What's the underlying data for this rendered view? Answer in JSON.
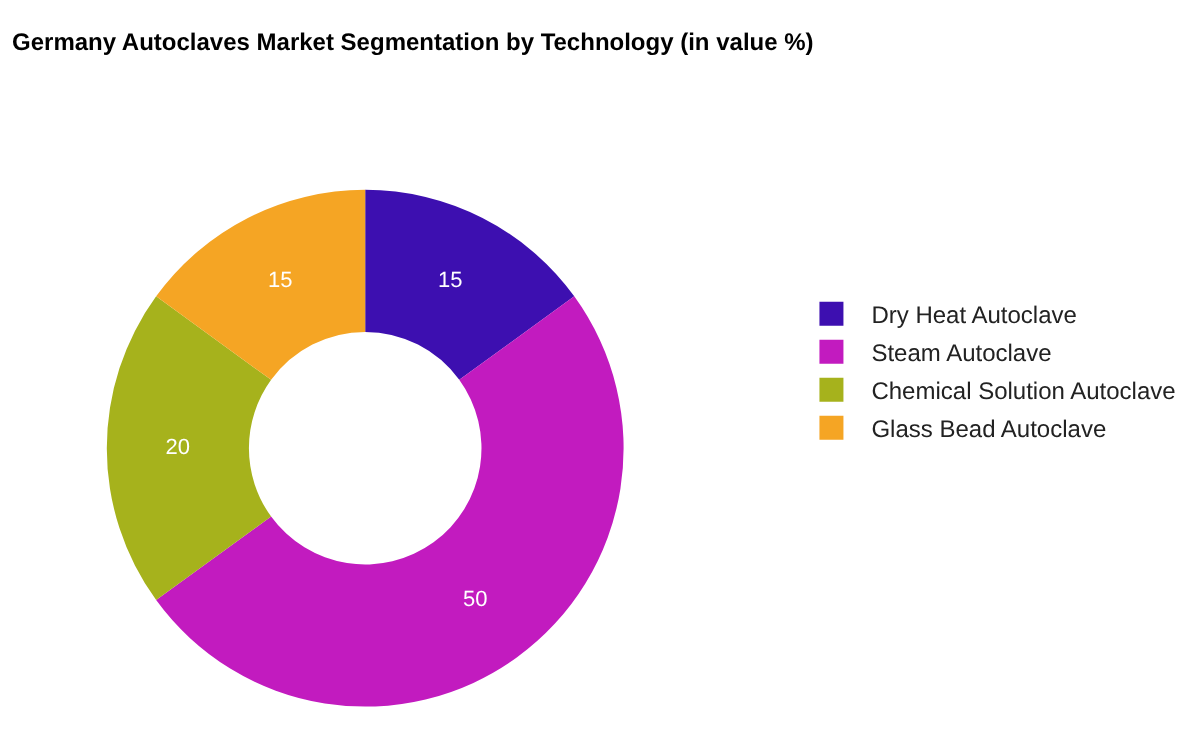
{
  "chart_data": {
    "type": "donut",
    "title": "Germany Autoclaves Market Segmentation by Technology (in value %)",
    "categories": [
      "Dry Heat Autoclave",
      "Steam Autoclave",
      "Chemical Solution Autoclave",
      "Glass Bead Autoclave"
    ],
    "values": [
      15,
      50,
      20,
      15
    ],
    "colors": [
      "#3d0fb0",
      "#c21bbf",
      "#a6b21c",
      "#f5a524"
    ],
    "data_labels": true,
    "legend": "right"
  }
}
